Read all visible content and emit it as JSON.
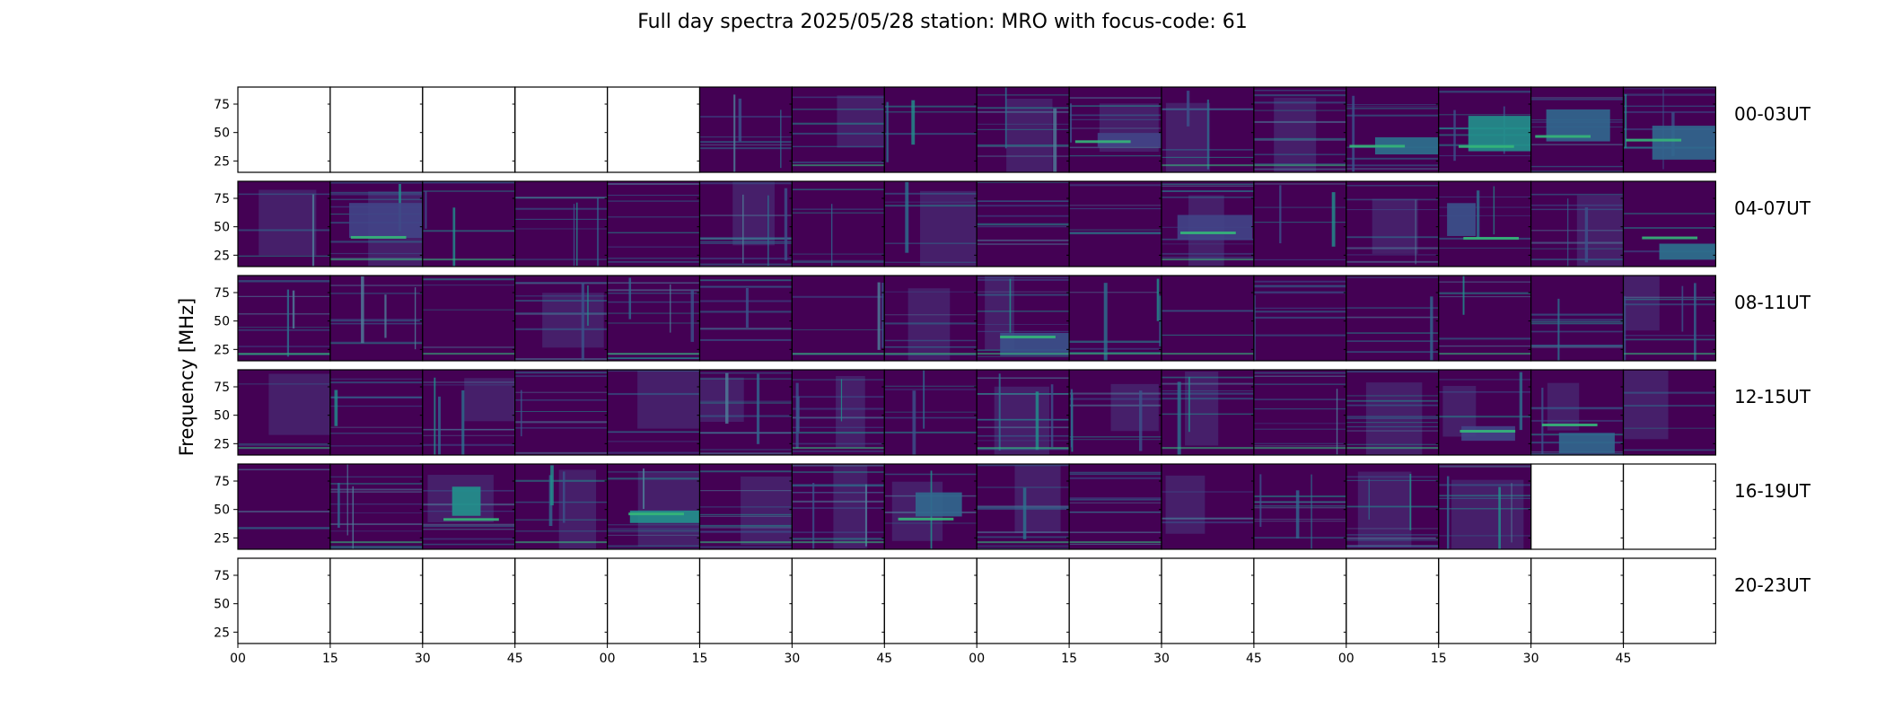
{
  "chart_data": {
    "type": "heatmap",
    "title": "Full day spectra 2025/05/28 station: MRO with focus-code: 61",
    "ylabel": "Frequency [MHz]",
    "xlabel": "",
    "y_ticks": [
      25,
      50,
      75
    ],
    "ylim": [
      15,
      90
    ],
    "x_ticks": [
      "00",
      "15",
      "30",
      "45",
      "00",
      "15",
      "30",
      "45",
      "00",
      "15",
      "30",
      "45",
      "00",
      "15",
      "30",
      "45"
    ],
    "panels_per_row": 16,
    "panel_minutes": 15,
    "colormap": "viridis",
    "rows": [
      {
        "label": "00-03UT",
        "has_data": [
          false,
          false,
          false,
          false,
          false,
          true,
          true,
          true,
          true,
          true,
          true,
          true,
          true,
          true,
          true,
          true
        ]
      },
      {
        "label": "04-07UT",
        "has_data": [
          true,
          true,
          true,
          true,
          true,
          true,
          true,
          true,
          true,
          true,
          true,
          true,
          true,
          true,
          true,
          true
        ]
      },
      {
        "label": "08-11UT",
        "has_data": [
          true,
          true,
          true,
          true,
          true,
          true,
          true,
          true,
          true,
          true,
          true,
          true,
          true,
          true,
          true,
          true
        ]
      },
      {
        "label": "12-15UT",
        "has_data": [
          true,
          true,
          true,
          true,
          true,
          true,
          true,
          true,
          true,
          true,
          true,
          true,
          true,
          true,
          true,
          true
        ]
      },
      {
        "label": "16-19UT",
        "has_data": [
          true,
          true,
          true,
          true,
          true,
          true,
          true,
          true,
          true,
          true,
          true,
          true,
          true,
          true,
          false,
          false
        ]
      },
      {
        "label": "20-23UT",
        "has_data": [
          false,
          false,
          false,
          false,
          false,
          false,
          false,
          false,
          false,
          false,
          false,
          false,
          false,
          false,
          false,
          false
        ]
      }
    ],
    "colors": {
      "background": "#440154",
      "low": "#46256e",
      "mid": "#31688e",
      "high": "#35b779",
      "peak": "#6ece58"
    }
  }
}
